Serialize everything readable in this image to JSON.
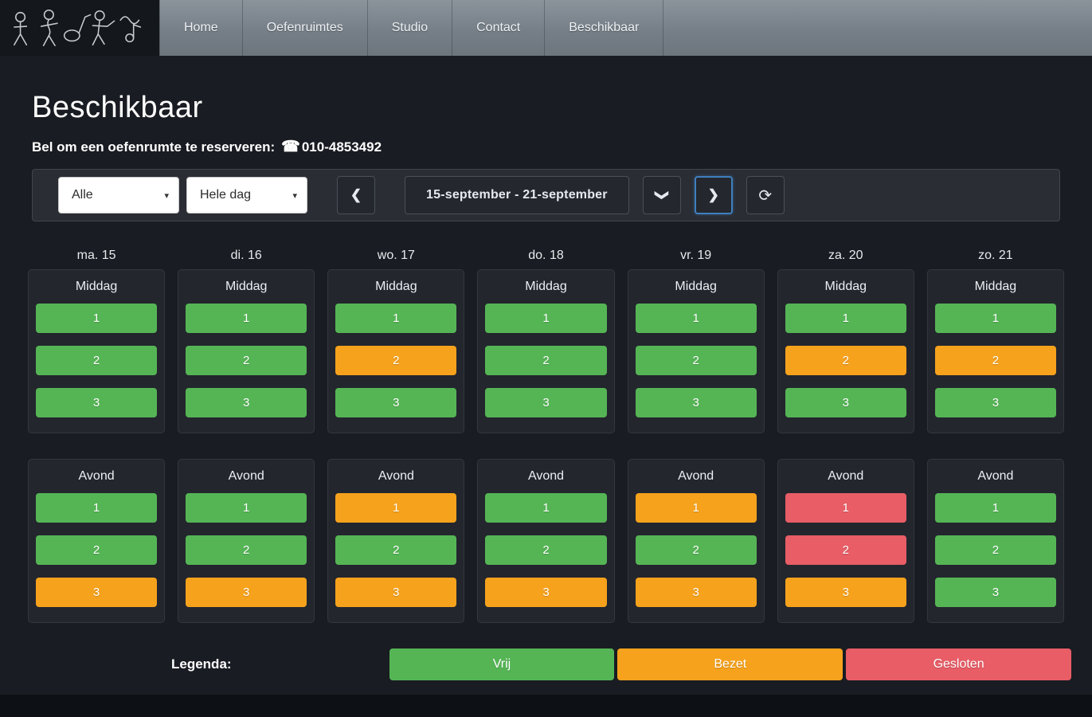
{
  "nav": {
    "items": [
      "Home",
      "Oefenruimtes",
      "Studio",
      "Contact",
      "Beschikbaar"
    ]
  },
  "page": {
    "title": "Beschikbaar",
    "reserve_label": "Bel om een oefenrumte te reserveren:",
    "phone_icon": "☎",
    "phone_number": "010-4853492"
  },
  "toolbar": {
    "room_filter_value": "Alle",
    "daypart_filter_value": "Hele dag",
    "date_range_label": "15-september - 21-september"
  },
  "rooms": [
    "1",
    "2",
    "3"
  ],
  "sections": {
    "middag_label": "Middag",
    "avond_label": "Avond"
  },
  "status_colors": {
    "vrij": "#55b555",
    "bezet": "#f6a21c",
    "gesloten": "#e85d66"
  },
  "days": [
    {
      "label": "ma. 15",
      "middag": [
        "vrij",
        "vrij",
        "vrij"
      ],
      "avond": [
        "vrij",
        "vrij",
        "bezet"
      ]
    },
    {
      "label": "di. 16",
      "middag": [
        "vrij",
        "vrij",
        "vrij"
      ],
      "avond": [
        "vrij",
        "vrij",
        "bezet"
      ]
    },
    {
      "label": "wo. 17",
      "middag": [
        "vrij",
        "bezet",
        "vrij"
      ],
      "avond": [
        "bezet",
        "vrij",
        "bezet"
      ]
    },
    {
      "label": "do. 18",
      "middag": [
        "vrij",
        "vrij",
        "vrij"
      ],
      "avond": [
        "vrij",
        "vrij",
        "bezet"
      ]
    },
    {
      "label": "vr. 19",
      "middag": [
        "vrij",
        "vrij",
        "vrij"
      ],
      "avond": [
        "bezet",
        "vrij",
        "bezet"
      ]
    },
    {
      "label": "za. 20",
      "middag": [
        "vrij",
        "bezet",
        "vrij"
      ],
      "avond": [
        "gesloten",
        "gesloten",
        "bezet"
      ]
    },
    {
      "label": "zo. 21",
      "middag": [
        "vrij",
        "bezet",
        "vrij"
      ],
      "avond": [
        "vrij",
        "vrij",
        "vrij"
      ]
    }
  ],
  "legend": {
    "label": "Legenda:",
    "items": [
      {
        "label": "Vrij",
        "status": "vrij"
      },
      {
        "label": "Bezet",
        "status": "bezet"
      },
      {
        "label": "Gesloten",
        "status": "gesloten"
      }
    ]
  }
}
